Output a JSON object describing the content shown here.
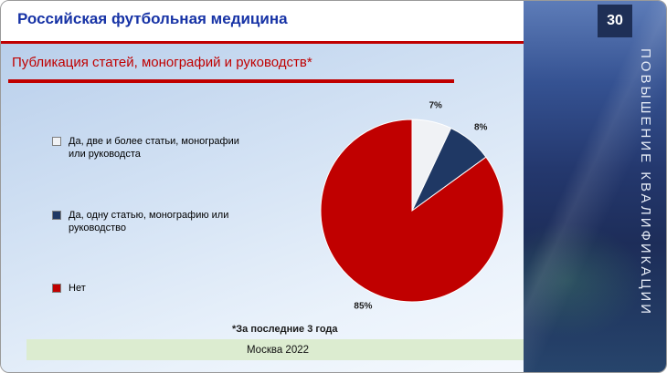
{
  "header": {
    "title": "Российская футбольная медицина",
    "slide_number": "30"
  },
  "sidebar": {
    "vertical_label": "ПОВЫШЕНИЕ КВАЛИФИКАЦИИ"
  },
  "main": {
    "subtitle": "Публикация статей, монографий и руководств*",
    "footnote": "*За последние 3  года",
    "footer": "Москва 2022"
  },
  "chart_data": {
    "type": "pie",
    "title": "Публикация статей, монографий и руководств*",
    "labels": [
      "Да, две и более статьи, монографии или руководста",
      "Да, одну статью, монографию или руководство",
      "Нет"
    ],
    "values": [
      7,
      8,
      85
    ],
    "value_labels": [
      "7%",
      "8%",
      "85%"
    ],
    "colors": [
      "#f0f2f5",
      "#1f3864",
      "#c00000"
    ],
    "start_angle_deg": -90,
    "direction": "clockwise",
    "legend_position": "left",
    "accent_color": "#c00000",
    "header_color": "#1733a6",
    "sidebar_color": "#1e2f56"
  }
}
